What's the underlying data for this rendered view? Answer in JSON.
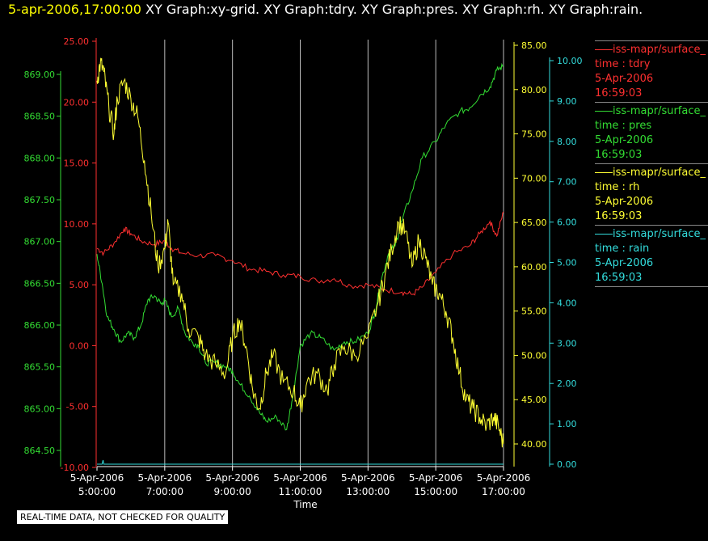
{
  "header": {
    "timestamp": "5-apr-2006,17:00:00",
    "graphs": [
      "XY Graph:xy-grid.",
      "XY Graph:tdry.",
      "XY Graph:pres.",
      "XY Graph:rh.",
      "XY Graph:rain."
    ]
  },
  "disclaimer": "REAL-TIME DATA, NOT CHECKED FOR QUALITY",
  "legend": [
    {
      "source": "iss-mapr/surface_",
      "var": "time : tdry",
      "date": "5-Apr-2006",
      "time": "16:59:03",
      "color": "#ff3030"
    },
    {
      "source": "iss-mapr/surface_",
      "var": "time : pres",
      "date": "5-Apr-2006",
      "time": "16:59:03",
      "color": "#33dd33"
    },
    {
      "source": "iss-mapr/surface_",
      "var": "time : rh",
      "date": "5-Apr-2006",
      "time": "16:59:03",
      "color": "#ffff33"
    },
    {
      "source": "iss-mapr/surface_",
      "var": "time : rain",
      "date": "5-Apr-2006",
      "time": "16:59:03",
      "color": "#33dddd"
    }
  ],
  "chart_data": {
    "type": "line",
    "xlabel": "Time",
    "x_ticks": [
      {
        "date": "5-Apr-2006",
        "time": "5:00:00",
        "h": 5
      },
      {
        "date": "5-Apr-2006",
        "time": "7:00:00",
        "h": 7
      },
      {
        "date": "5-Apr-2006",
        "time": "9:00:00",
        "h": 9
      },
      {
        "date": "5-Apr-2006",
        "time": "11:00:00",
        "h": 11
      },
      {
        "date": "5-Apr-2006",
        "time": "13:00:00",
        "h": 13
      },
      {
        "date": "5-Apr-2006",
        "time": "15:00:00",
        "h": 15
      },
      {
        "date": "5-Apr-2006",
        "time": "17:00:00",
        "h": 17
      }
    ],
    "grid": "vertical",
    "axes": {
      "tdry": {
        "color": "#ff3030",
        "ylim": [
          -10,
          25
        ],
        "ticks": [
          "-10.00",
          "-5.00",
          "0.00",
          "5.00",
          "10.00",
          "15.00",
          "20.00",
          "25.00"
        ]
      },
      "pres": {
        "color": "#33dd33",
        "ylim": [
          864.5,
          869.0
        ],
        "ticks": [
          "864.50",
          "865.00",
          "865.50",
          "866.00",
          "866.50",
          "867.00",
          "867.50",
          "868.00",
          "868.50",
          "869.00"
        ]
      },
      "rh": {
        "color": "#ffff33",
        "ylim": [
          40,
          85
        ],
        "ticks": [
          "40.00",
          "45.00",
          "50.00",
          "55.00",
          "60.00",
          "65.00",
          "70.00",
          "75.00",
          "80.00",
          "85.00"
        ]
      },
      "rain": {
        "color": "#33dddd",
        "ylim": [
          0,
          10
        ],
        "ticks": [
          "0.00",
          "1.00",
          "2.00",
          "3.00",
          "4.00",
          "5.00",
          "6.00",
          "7.00",
          "8.00",
          "9.00",
          "10.00"
        ]
      }
    },
    "series": [
      {
        "key": "tdry",
        "points": [
          [
            5.0,
            8.0
          ],
          [
            5.2,
            7.6
          ],
          [
            5.5,
            8.4
          ],
          [
            5.8,
            9.6
          ],
          [
            6.0,
            9.2
          ],
          [
            6.3,
            8.6
          ],
          [
            6.7,
            8.3
          ],
          [
            7.0,
            8.6
          ],
          [
            7.2,
            8.0
          ],
          [
            7.5,
            7.6
          ],
          [
            8.0,
            7.4
          ],
          [
            8.5,
            7.4
          ],
          [
            9.0,
            7.0
          ],
          [
            9.5,
            6.3
          ],
          [
            10.0,
            6.1
          ],
          [
            10.5,
            5.8
          ],
          [
            11.0,
            5.7
          ],
          [
            11.5,
            5.3
          ],
          [
            12.0,
            5.5
          ],
          [
            12.5,
            4.9
          ],
          [
            13.0,
            5.0
          ],
          [
            13.5,
            4.6
          ],
          [
            14.0,
            4.4
          ],
          [
            14.3,
            4.2
          ],
          [
            14.6,
            4.8
          ],
          [
            15.0,
            6.0
          ],
          [
            15.5,
            7.5
          ],
          [
            16.0,
            8.2
          ],
          [
            16.3,
            9.2
          ],
          [
            16.6,
            10.2
          ],
          [
            16.8,
            9.0
          ],
          [
            17.0,
            11.0
          ]
        ]
      },
      {
        "key": "pres",
        "points": [
          [
            5.0,
            866.85
          ],
          [
            5.15,
            866.5
          ],
          [
            5.3,
            866.1
          ],
          [
            5.5,
            865.95
          ],
          [
            5.7,
            865.8
          ],
          [
            5.9,
            865.9
          ],
          [
            6.1,
            865.85
          ],
          [
            6.3,
            866.0
          ],
          [
            6.5,
            866.3
          ],
          [
            6.7,
            866.35
          ],
          [
            6.9,
            866.25
          ],
          [
            7.0,
            866.3
          ],
          [
            7.2,
            866.1
          ],
          [
            7.4,
            866.2
          ],
          [
            7.6,
            865.9
          ],
          [
            7.8,
            865.8
          ],
          [
            8.0,
            865.75
          ],
          [
            8.2,
            865.55
          ],
          [
            8.5,
            865.55
          ],
          [
            8.8,
            865.5
          ],
          [
            9.0,
            865.45
          ],
          [
            9.2,
            865.3
          ],
          [
            9.5,
            865.15
          ],
          [
            9.8,
            864.95
          ],
          [
            10.0,
            864.85
          ],
          [
            10.3,
            864.9
          ],
          [
            10.6,
            864.75
          ],
          [
            10.8,
            865.2
          ],
          [
            11.0,
            865.75
          ],
          [
            11.3,
            865.9
          ],
          [
            11.6,
            865.85
          ],
          [
            12.0,
            865.7
          ],
          [
            12.3,
            865.8
          ],
          [
            12.6,
            865.8
          ],
          [
            13.0,
            865.9
          ],
          [
            13.2,
            866.15
          ],
          [
            13.4,
            866.55
          ],
          [
            13.6,
            866.85
          ],
          [
            13.8,
            866.95
          ],
          [
            14.0,
            867.25
          ],
          [
            14.3,
            867.6
          ],
          [
            14.6,
            868.0
          ],
          [
            15.0,
            868.2
          ],
          [
            15.3,
            868.4
          ],
          [
            15.7,
            868.55
          ],
          [
            16.0,
            868.6
          ],
          [
            16.3,
            868.75
          ],
          [
            16.6,
            868.85
          ],
          [
            16.8,
            869.05
          ],
          [
            17.0,
            869.1
          ]
        ]
      },
      {
        "key": "rh",
        "points": [
          [
            5.0,
            81
          ],
          [
            5.1,
            83
          ],
          [
            5.2,
            82
          ],
          [
            5.35,
            78
          ],
          [
            5.5,
            75
          ],
          [
            5.6,
            79
          ],
          [
            5.8,
            81
          ],
          [
            6.0,
            79
          ],
          [
            6.2,
            77
          ],
          [
            6.4,
            72
          ],
          [
            6.6,
            66
          ],
          [
            6.8,
            60
          ],
          [
            7.0,
            62
          ],
          [
            7.1,
            65
          ],
          [
            7.25,
            58
          ],
          [
            7.5,
            57
          ],
          [
            7.7,
            53
          ],
          [
            8.0,
            52
          ],
          [
            8.2,
            50
          ],
          [
            8.5,
            49
          ],
          [
            8.8,
            48
          ],
          [
            9.0,
            52
          ],
          [
            9.2,
            54
          ],
          [
            9.4,
            51
          ],
          [
            9.6,
            46
          ],
          [
            9.8,
            44
          ],
          [
            10.0,
            48
          ],
          [
            10.2,
            50
          ],
          [
            10.5,
            47
          ],
          [
            10.8,
            46
          ],
          [
            11.0,
            44
          ],
          [
            11.2,
            47
          ],
          [
            11.5,
            48
          ],
          [
            11.8,
            46
          ],
          [
            12.0,
            49
          ],
          [
            12.3,
            51
          ],
          [
            12.6,
            50
          ],
          [
            13.0,
            52
          ],
          [
            13.3,
            56
          ],
          [
            13.5,
            59
          ],
          [
            13.7,
            62
          ],
          [
            13.9,
            65
          ],
          [
            14.1,
            64
          ],
          [
            14.3,
            60
          ],
          [
            14.5,
            63
          ],
          [
            14.7,
            61
          ],
          [
            14.9,
            58
          ],
          [
            15.1,
            57
          ],
          [
            15.3,
            55
          ],
          [
            15.5,
            52
          ],
          [
            15.7,
            48
          ],
          [
            15.9,
            45
          ],
          [
            16.1,
            44
          ],
          [
            16.3,
            43
          ],
          [
            16.5,
            42
          ],
          [
            16.7,
            43
          ],
          [
            16.85,
            42
          ],
          [
            17.0,
            40
          ]
        ]
      },
      {
        "key": "rain",
        "points": [
          [
            5.0,
            0.0
          ],
          [
            5.15,
            0.0
          ],
          [
            5.18,
            0.1
          ],
          [
            5.2,
            0.0
          ],
          [
            17.0,
            0.0
          ]
        ]
      }
    ]
  }
}
